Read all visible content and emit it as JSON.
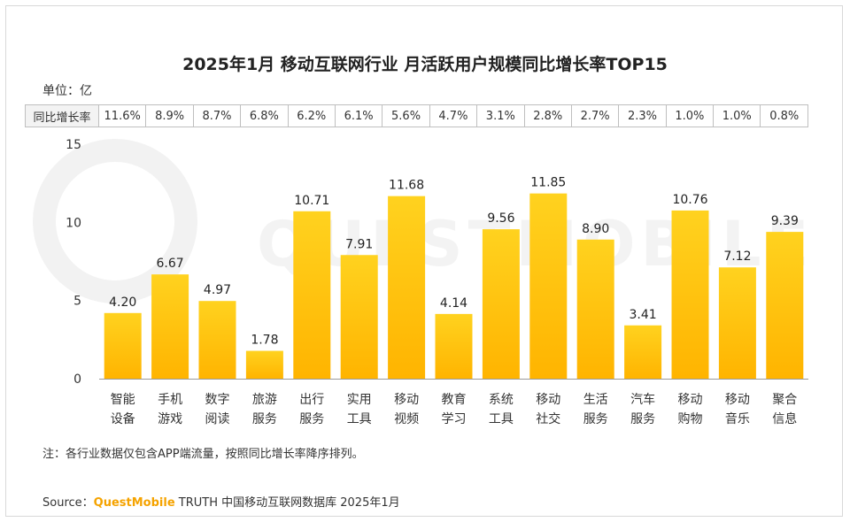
{
  "unit_label": "单位：亿",
  "growth_row_label": "同比增长率",
  "source": {
    "prefix": "Source：",
    "brand": "QuestMobile",
    "rest": "TRUTH 中国移动互联网数据库 2025年1月"
  },
  "note": "注：各行业数据仅包含APP端流量，按照同比增长率降序排列。",
  "watermark": "QUESTMOBILE",
  "colors": {
    "bar_top": "#ffd21f",
    "bar_bottom": "#ffb400",
    "axis": "#999999"
  },
  "chart_data": {
    "type": "bar",
    "title": "2025年1月 移动互联网行业 月活跃用户规模同比增长率TOP15",
    "ylim": [
      0,
      15
    ],
    "yticks": [
      0,
      5,
      10,
      15
    ],
    "categories": [
      [
        "智能",
        "设备"
      ],
      [
        "手机",
        "游戏"
      ],
      [
        "数字",
        "阅读"
      ],
      [
        "旅游",
        "服务"
      ],
      [
        "出行",
        "服务"
      ],
      [
        "实用",
        "工具"
      ],
      [
        "移动",
        "视频"
      ],
      [
        "教育",
        "学习"
      ],
      [
        "系统",
        "工具"
      ],
      [
        "移动",
        "社交"
      ],
      [
        "生活",
        "服务"
      ],
      [
        "汽车",
        "服务"
      ],
      [
        "移动",
        "购物"
      ],
      [
        "移动",
        "音乐"
      ],
      [
        "聚合",
        "信息"
      ]
    ],
    "values": [
      4.2,
      6.67,
      4.97,
      1.78,
      10.71,
      7.91,
      11.68,
      4.14,
      9.56,
      11.85,
      8.9,
      3.41,
      10.76,
      7.12,
      9.39
    ],
    "value_labels": [
      "4.20",
      "6.67",
      "4.97",
      "1.78",
      "10.71",
      "7.91",
      "11.68",
      "4.14",
      "9.56",
      "11.85",
      "8.90",
      "3.41",
      "10.76",
      "7.12",
      "9.39"
    ],
    "growth_rates": [
      "11.6%",
      "8.9%",
      "8.7%",
      "6.8%",
      "6.2%",
      "6.1%",
      "5.6%",
      "4.7%",
      "3.1%",
      "2.8%",
      "2.7%",
      "2.3%",
      "1.0%",
      "1.0%",
      "0.8%"
    ]
  }
}
